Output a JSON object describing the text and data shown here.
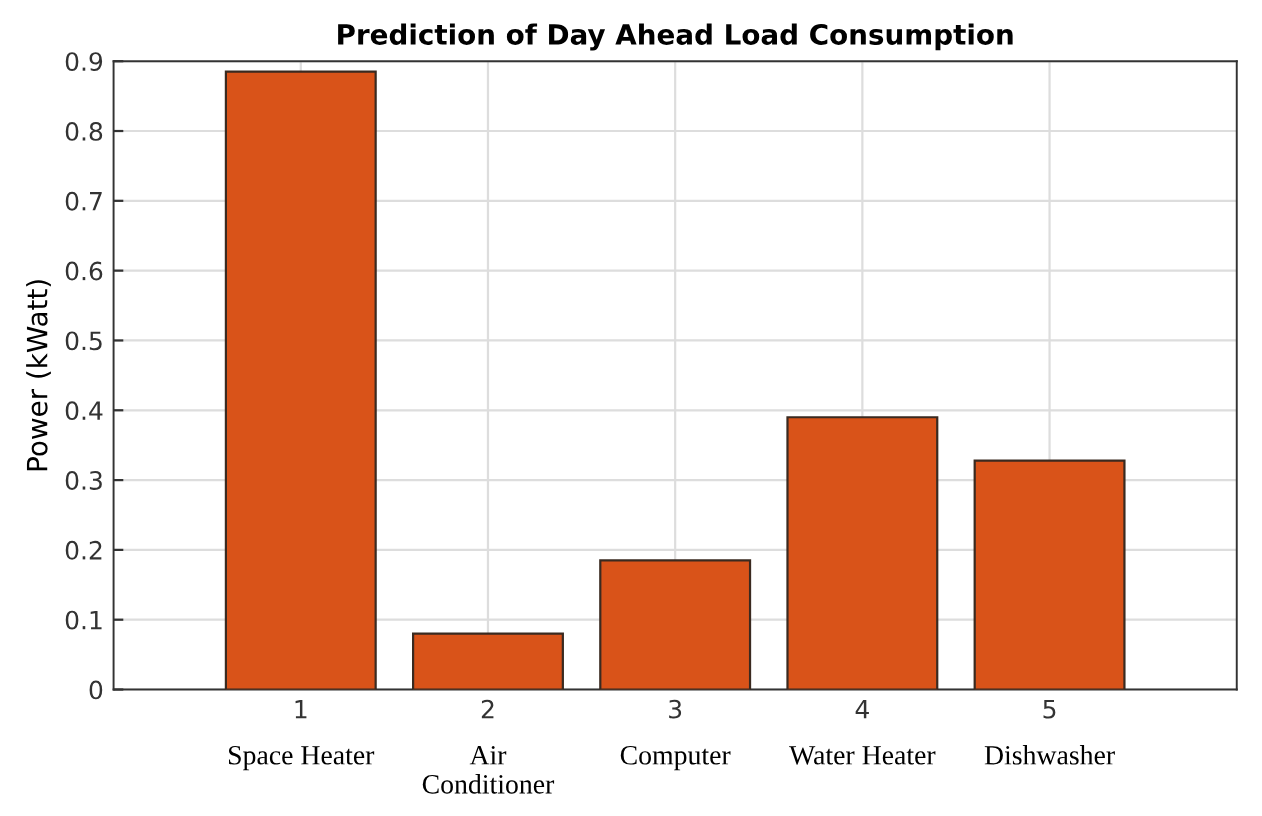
{
  "chart_data": {
    "type": "bar",
    "title": "Prediction of Day Ahead Load Consumption",
    "ylabel": "Power (kWatt)",
    "x": [
      1,
      2,
      3,
      4,
      5
    ],
    "values": [
      0.885,
      0.08,
      0.185,
      0.39,
      0.328
    ],
    "color": "#d95319",
    "xlim": [
      0,
      6
    ],
    "xticks": [
      1,
      2,
      3,
      4,
      5
    ],
    "ylim": [
      0,
      0.9
    ],
    "yticks": [
      0,
      0.1,
      0.2,
      0.3,
      0.4,
      0.5,
      0.6,
      0.7,
      0.8,
      0.9
    ],
    "grid": true,
    "annotations": [
      "Space Heater",
      "Air\nConditioner",
      "Computer",
      "Water Heater",
      "Dishwasher"
    ]
  }
}
